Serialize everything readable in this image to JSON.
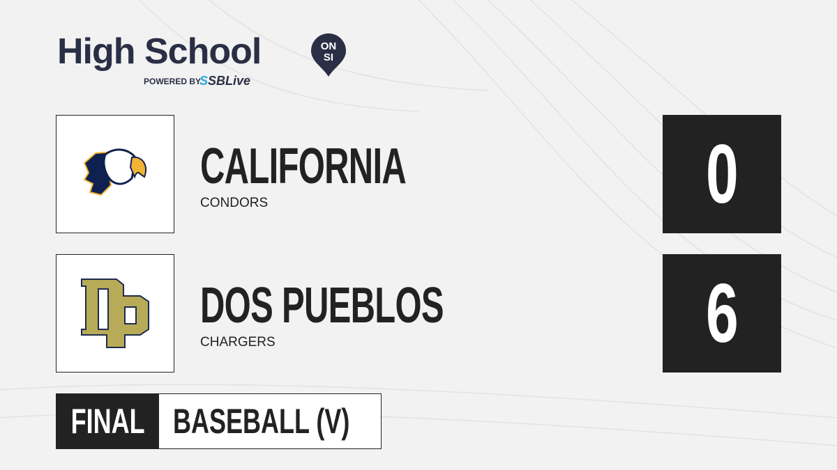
{
  "brand": {
    "title": "High School",
    "badge_top": "ON",
    "badge_bottom": "SI",
    "powered_by": "POWERED BY",
    "partner_prefix": "S",
    "partner": "SBLive"
  },
  "teams": [
    {
      "name": "CALIFORNIA",
      "mascot": "CONDORS",
      "score": "0",
      "logo": "condor-logo"
    },
    {
      "name": "DOS PUEBLOS",
      "mascot": "CHARGERS",
      "score": "6",
      "logo": "dp-logo"
    }
  ],
  "status": "FINAL",
  "sport": "BASEBALL (V)",
  "colors": {
    "dark": "#222222",
    "navy": "#2b2f45",
    "gold": "#b8ab58",
    "condor_navy": "#0f2150",
    "condor_gold": "#f2b434",
    "accent": "#2aa8e0"
  }
}
